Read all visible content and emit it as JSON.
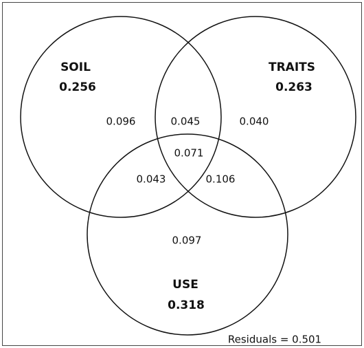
{
  "sets": [
    {
      "name": "SOIL",
      "total": "0.256"
    },
    {
      "name": "TRAITS",
      "total": "0.263"
    },
    {
      "name": "USE",
      "total": "0.318"
    }
  ],
  "regions": {
    "soil_only": "0.096",
    "soil_traits": "0.045",
    "traits_only": "0.040",
    "all": "0.071",
    "soil_use": "0.043",
    "traits_use": "0.106",
    "use_only": "0.097"
  },
  "residuals": "Residuals = 0.501"
}
